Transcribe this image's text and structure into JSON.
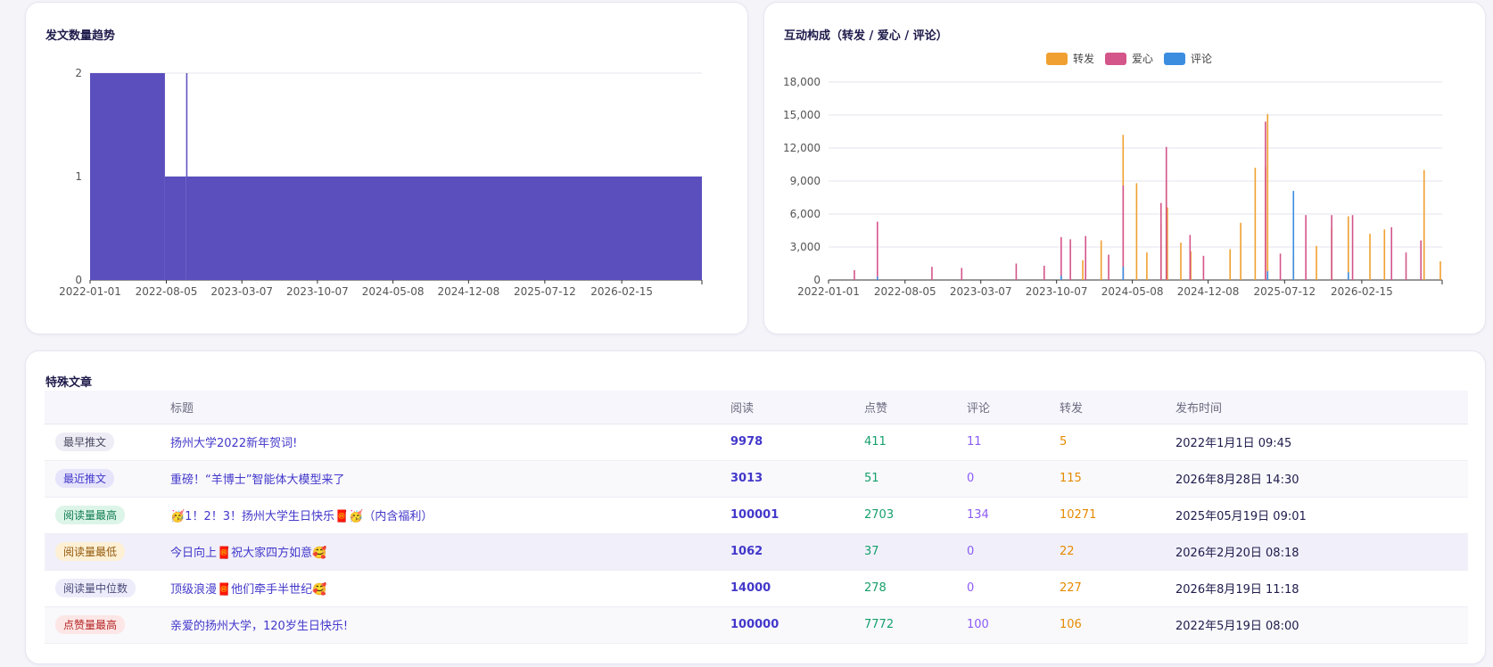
{
  "charts": {
    "trend": {
      "title": "发文数量趋势",
      "chart_data": {
        "type": "bar",
        "title": "发文数量趋势",
        "x_tick_labels": [
          "2022-01-01",
          "2022-08-05",
          "2023-03-07",
          "2023-10-07",
          "2024-05-08",
          "2024-12-08",
          "2025-07-12",
          "2026-02-15"
        ],
        "x_range": [
          "2022-01-01",
          "2026-09-30"
        ],
        "y_tick_labels": [
          "0",
          "1",
          "2"
        ],
        "ylim": [
          0,
          2
        ],
        "grid": true,
        "color": "#5b4fbe",
        "series": [
          {
            "segments": [
              {
                "from": "2022-01-01",
                "to": "2022-08-01",
                "value": 2
              },
              {
                "from": "2022-08-01",
                "to": "2022-09-30",
                "value": 1
              },
              {
                "from": "2022-09-30",
                "to": "2022-10-02",
                "value": 2
              },
              {
                "from": "2022-10-02",
                "to": "2026-09-30",
                "value": 1
              }
            ]
          }
        ]
      }
    },
    "interaction": {
      "title": "互动构成（转发 / 爱心 / 评论）",
      "chart_data": {
        "type": "bar",
        "title": "互动构成（转发 / 爱心 / 评论）",
        "x_tick_labels": [
          "2022-01-01",
          "2022-08-05",
          "2023-03-07",
          "2023-10-07",
          "2024-05-08",
          "2024-12-08",
          "2025-07-12",
          "2026-02-15"
        ],
        "x_range": [
          "2022-01-01",
          "2026-09-30"
        ],
        "y_tick_labels": [
          "0",
          "3,000",
          "6,000",
          "9,000",
          "12,000",
          "15,000",
          "18,000"
        ],
        "ylim": [
          0,
          18000
        ],
        "grid": true,
        "legend_position": "top-center",
        "series": [
          {
            "name": "转发",
            "color": "#f0a030",
            "points": [
              [
                "2024-04-12",
                13200
              ],
              [
                "2024-05-20",
                8800
              ],
              [
                "2024-07-28",
                5000
              ],
              [
                "2024-08-12",
                9000
              ],
              [
                "2024-08-15",
                6600
              ],
              [
                "2024-09-22",
                3400
              ],
              [
                "2025-03-10",
                5200
              ],
              [
                "2025-04-20",
                10200
              ],
              [
                "2025-05-19",
                10271
              ],
              [
                "2025-05-25",
                15100
              ],
              [
                "2025-08-06",
                2200
              ],
              [
                "2025-10-10",
                3100
              ],
              [
                "2025-11-22",
                4800
              ],
              [
                "2026-01-08",
                5800
              ],
              [
                "2026-03-10",
                4200
              ],
              [
                "2026-04-20",
                4600
              ],
              [
                "2026-08-10",
                10000
              ],
              [
                "2026-09-25",
                1700
              ],
              [
                "2024-02-10",
                3600
              ],
              [
                "2024-06-18",
                2500
              ],
              [
                "2025-02-08",
                2800
              ],
              [
                "2023-12-20",
                1800
              ],
              [
                "2024-10-20",
                2600
              ]
            ]
          },
          {
            "name": "爱心",
            "color": "#d4558a",
            "points": [
              [
                "2022-05-19",
                5300
              ],
              [
                "2022-10-20",
                1200
              ],
              [
                "2023-06-15",
                1500
              ],
              [
                "2023-10-20",
                3900
              ],
              [
                "2023-11-15",
                3700
              ],
              [
                "2023-12-28",
                4000
              ],
              [
                "2024-04-12",
                8600
              ],
              [
                "2024-07-28",
                7000
              ],
              [
                "2024-08-12",
                12100
              ],
              [
                "2024-10-18",
                4100
              ],
              [
                "2025-05-19",
                14400
              ],
              [
                "2025-09-10",
                5900
              ],
              [
                "2025-11-22",
                5900
              ],
              [
                "2026-01-20",
                5900
              ],
              [
                "2026-05-10",
                4800
              ],
              [
                "2026-08-01",
                3600
              ],
              [
                "2022-03-15",
                900
              ],
              [
                "2023-01-12",
                1100
              ],
              [
                "2023-09-02",
                1300
              ],
              [
                "2024-03-02",
                2300
              ],
              [
                "2024-11-25",
                2200
              ],
              [
                "2025-06-30",
                2400
              ],
              [
                "2026-06-20",
                2500
              ]
            ]
          },
          {
            "name": "评论",
            "color": "#3b8de0",
            "points": [
              [
                "2025-08-06",
                8100
              ],
              [
                "2024-04-12",
                1200
              ],
              [
                "2025-05-25",
                800
              ],
              [
                "2026-01-08",
                700
              ],
              [
                "2023-10-20",
                400
              ],
              [
                "2022-05-19",
                300
              ]
            ]
          }
        ]
      }
    }
  },
  "special": {
    "title": "特殊文章",
    "headers": [
      "",
      "标题",
      "阅读",
      "点赞",
      "评论",
      "转发",
      "发布时间"
    ],
    "rows": [
      {
        "badge": "最早推文",
        "badge_color": "gray",
        "title": "扬州大学2022新年贺词!",
        "read": "9978",
        "like": "411",
        "comment": "11",
        "share": "5",
        "time": "2022年1月1日 09:45"
      },
      {
        "badge": "最近推文",
        "badge_color": "indigo",
        "title": "重磅！“羊博士”智能体大模型来了",
        "read": "3013",
        "like": "51",
        "comment": "0",
        "share": "115",
        "time": "2026年8月28日 14:30"
      },
      {
        "badge": "阅读量最高",
        "badge_color": "green",
        "title": "🥳1！2！3！扬州大学生日快乐🧧🥳（内含福利）",
        "read": "100001",
        "like": "2703",
        "comment": "134",
        "share": "10271",
        "time": "2025年05月19日 09:01"
      },
      {
        "badge": "阅读量最低",
        "badge_color": "amber",
        "title": "今日向上🧧祝大家四方如意🥰",
        "read": "1062",
        "like": "37",
        "comment": "0",
        "share": "22",
        "time": "2026年2月20日 08:18"
      },
      {
        "badge": "阅读量中位数",
        "badge_color": "lavender",
        "title": "顶级浪漫🧧他们牵手半世纪🥰",
        "read": "14000",
        "like": "278",
        "comment": "0",
        "share": "227",
        "time": "2026年8月19日 11:18"
      },
      {
        "badge": "点赞量最高",
        "badge_color": "red",
        "title": "亲爱的扬州大学，120岁生日快乐!",
        "read": "100000",
        "like": "7772",
        "comment": "100",
        "share": "106",
        "time": "2022年5月19日 08:00"
      }
    ]
  }
}
